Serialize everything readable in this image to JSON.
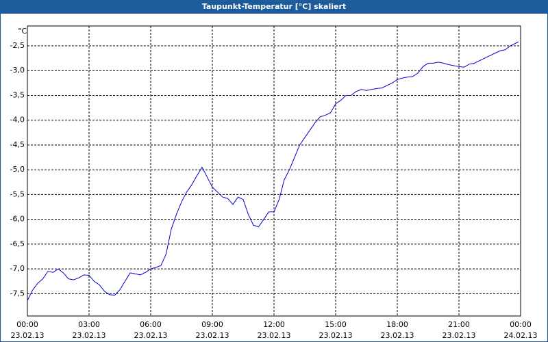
{
  "chart_data": {
    "type": "line",
    "title": "Taupunkt-Temperatur [°C] skaliert",
    "y_label": "°C",
    "x": [
      0,
      0.25,
      0.5,
      0.75,
      1,
      1.25,
      1.5,
      1.75,
      2,
      2.25,
      2.5,
      2.75,
      3,
      3.25,
      3.5,
      3.75,
      4,
      4.25,
      4.5,
      4.75,
      5,
      5.25,
      5.5,
      5.75,
      6,
      6.25,
      6.5,
      6.75,
      7,
      7.25,
      7.5,
      7.75,
      8,
      8.25,
      8.5,
      8.75,
      9,
      9.25,
      9.5,
      9.75,
      10,
      10.25,
      10.5,
      10.75,
      11,
      11.25,
      11.5,
      11.75,
      12,
      12.25,
      12.5,
      12.75,
      13,
      13.25,
      13.5,
      13.75,
      14,
      14.25,
      14.5,
      14.75,
      15,
      15.25,
      15.5,
      15.75,
      16,
      16.25,
      16.5,
      16.75,
      17,
      17.25,
      17.5,
      17.75,
      18,
      18.25,
      18.5,
      18.75,
      19,
      19.25,
      19.5,
      19.75,
      20,
      20.25,
      20.5,
      20.75,
      21,
      21.25,
      21.5,
      21.75,
      22,
      22.25,
      22.5,
      22.75,
      23,
      23.25,
      23.5,
      23.75,
      23.9
    ],
    "series": [
      {
        "name": "Taupunkt",
        "color": "#0000cc",
        "values": [
          -7.64,
          -7.43,
          -7.29,
          -7.2,
          -7.05,
          -7.07,
          -7.0,
          -7.08,
          -7.2,
          -7.22,
          -7.18,
          -7.12,
          -7.13,
          -7.25,
          -7.32,
          -7.45,
          -7.52,
          -7.53,
          -7.42,
          -7.25,
          -7.08,
          -7.1,
          -7.12,
          -7.07,
          -7.0,
          -6.97,
          -6.93,
          -6.7,
          -6.2,
          -5.9,
          -5.65,
          -5.45,
          -5.3,
          -5.12,
          -4.95,
          -5.15,
          -5.35,
          -5.45,
          -5.55,
          -5.58,
          -5.7,
          -5.55,
          -5.6,
          -5.9,
          -6.12,
          -6.15,
          -6.0,
          -5.85,
          -5.85,
          -5.6,
          -5.2,
          -5.0,
          -4.75,
          -4.5,
          -4.35,
          -4.2,
          -4.05,
          -3.93,
          -3.9,
          -3.85,
          -3.67,
          -3.6,
          -3.5,
          -3.5,
          -3.42,
          -3.38,
          -3.4,
          -3.38,
          -3.36,
          -3.35,
          -3.3,
          -3.25,
          -3.18,
          -3.15,
          -3.13,
          -3.12,
          -3.05,
          -2.92,
          -2.85,
          -2.85,
          -2.83,
          -2.85,
          -2.88,
          -2.9,
          -2.92,
          -2.93,
          -2.87,
          -2.85,
          -2.8,
          -2.75,
          -2.7,
          -2.65,
          -2.6,
          -2.58,
          -2.5,
          -2.45,
          -2.42
        ]
      }
    ],
    "xlim": [
      0,
      24
    ],
    "xticks": [
      {
        "value": 0,
        "label": "00:00"
      },
      {
        "value": 3,
        "label": "03:00"
      },
      {
        "value": 6,
        "label": "06:00"
      },
      {
        "value": 9,
        "label": "09:00"
      },
      {
        "value": 12,
        "label": "12:00"
      },
      {
        "value": 15,
        "label": "15:00"
      },
      {
        "value": 18,
        "label": "18:00"
      },
      {
        "value": 21,
        "label": "21:00"
      },
      {
        "value": 24,
        "label": "00:00"
      }
    ],
    "xtick_dates": [
      "23.02.13",
      "23.02.13",
      "23.02.13",
      "23.02.13",
      "23.02.13",
      "23.02.13",
      "23.02.13",
      "23.02.13",
      "24.02.13"
    ],
    "ylim": [
      -7.95,
      -2.1
    ],
    "yticks": [
      {
        "value": -2.5,
        "label": "-2,5"
      },
      {
        "value": -3,
        "label": "-3,0"
      },
      {
        "value": -3.5,
        "label": "-3,5"
      },
      {
        "value": -4,
        "label": "-4,0"
      },
      {
        "value": -4.5,
        "label": "-4,5"
      },
      {
        "value": -5,
        "label": "-5,0"
      },
      {
        "value": -5.5,
        "label": "-5,5"
      },
      {
        "value": -6,
        "label": "-6,0"
      },
      {
        "value": -6.5,
        "label": "-6,5"
      },
      {
        "value": -7,
        "label": "-7,0"
      },
      {
        "value": -7.5,
        "label": "-7,5"
      }
    ],
    "grid": true
  }
}
